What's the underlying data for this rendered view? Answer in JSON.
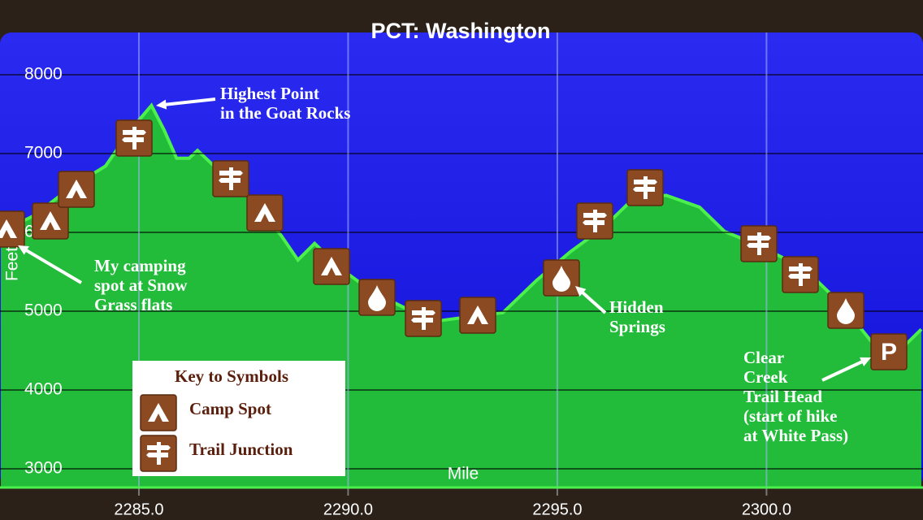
{
  "chart_data": {
    "type": "area",
    "title": "PCT: Washington",
    "x_label": "Mile",
    "y_label": "Feet",
    "x": [
      2281.7,
      2282.5,
      2283.4,
      2284.2,
      2284.8,
      2285.3,
      2285.6,
      2285.9,
      2286.2,
      2286.4,
      2286.9,
      2287.7,
      2288.4,
      2288.8,
      2289.2,
      2289.8,
      2290.6,
      2291.4,
      2292.2,
      2292.9,
      2293.7,
      2294.5,
      2295.3,
      2296.1,
      2296.8,
      2297.6,
      2298.4,
      2299.0,
      2299.7,
      2300.5,
      2301.1,
      2301.8,
      2302.5,
      2303.2,
      2303.7
    ],
    "values": [
      6000,
      6215,
      6580,
      6840,
      7300,
      7610,
      7300,
      6940,
      6940,
      7040,
      6790,
      6420,
      5960,
      5650,
      5860,
      5550,
      5240,
      5030,
      4880,
      4930,
      4980,
      5390,
      5750,
      6060,
      6420,
      6470,
      6320,
      6010,
      5860,
      5650,
      5440,
      5080,
      4620,
      4510,
      4770
    ],
    "color": "#22bb3a",
    "line_color": "#4cf04c",
    "xlim": [
      2281.68,
      2303.74
    ],
    "ylim": [
      2763,
      8536
    ],
    "xticks": [
      {
        "value": 2285,
        "label": "2285.0"
      },
      {
        "value": 2290,
        "label": "2290.0"
      },
      {
        "value": 2295,
        "label": "2295.0"
      },
      {
        "value": 2300,
        "label": "2300.0"
      }
    ],
    "yticks": [
      3000,
      4000,
      5000,
      6000,
      7000,
      8000
    ],
    "grid": true,
    "annotations": [
      {
        "lines": [
          "Highest Point",
          "in the Goat Rocks"
        ]
      },
      {
        "lines": [
          "My camping",
          "spot at Snow",
          "Grass flats"
        ]
      },
      {
        "lines": [
          "Hidden",
          "Springs"
        ]
      },
      {
        "lines": [
          "Clear",
          "Creek",
          "Trail Head",
          "(start of hike",
          "at White Pass)"
        ]
      }
    ],
    "parking_symbol": "P",
    "legend": {
      "title": "Key to Symbols",
      "items": [
        "Camp Spot",
        "Trail Junction"
      ]
    }
  }
}
